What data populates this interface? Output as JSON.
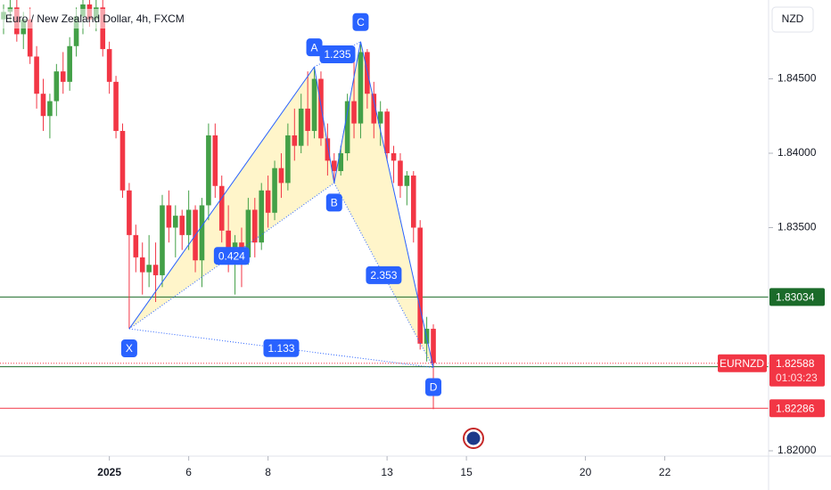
{
  "chart_data": {
    "type": "candlestick",
    "title": "Euro / New Zealand Dollar, 4h, FXCM",
    "currency": "NZD",
    "up_color": "#43a047",
    "down_color": "#f23645",
    "xlim": [
      -0.54,
      115.7
    ],
    "xticks": [
      {
        "value": 16,
        "label": "2025"
      },
      {
        "value": 28,
        "label": "6"
      },
      {
        "value": 40,
        "label": "8"
      },
      {
        "value": 58,
        "label": "13"
      },
      {
        "value": 70,
        "label": "15"
      },
      {
        "value": 88,
        "label": "20"
      },
      {
        "value": 100,
        "label": "22"
      }
    ],
    "ylim": [
      1.81964,
      1.8503
    ],
    "yticks": [
      {
        "value": 1.845,
        "label": "1.84500"
      },
      {
        "value": 1.84,
        "label": "1.84000"
      },
      {
        "value": 1.835,
        "label": "1.83500"
      },
      {
        "value": 1.82,
        "label": "1.82000"
      }
    ],
    "x": [
      0,
      1,
      2,
      3,
      4,
      5,
      6,
      7,
      8,
      9,
      10,
      11,
      12,
      13,
      14,
      15,
      16,
      17,
      18,
      19,
      20,
      21,
      22,
      23,
      24,
      25,
      26,
      27,
      28,
      29,
      30,
      31,
      32,
      33,
      34,
      35,
      36,
      37,
      38,
      39,
      40,
      41,
      42,
      43,
      44,
      45,
      46,
      47,
      48,
      49,
      50,
      51,
      52,
      53,
      54,
      55,
      56,
      57,
      58,
      59,
      60,
      61,
      62,
      63,
      64,
      65
    ],
    "open": [
      1.849,
      1.8495,
      1.8498,
      1.848,
      1.849,
      1.8465,
      1.844,
      1.8425,
      1.8435,
      1.8455,
      1.8448,
      1.8472,
      1.8492,
      1.85,
      1.849,
      1.8498,
      1.847,
      1.8448,
      1.8415,
      1.8375,
      1.8345,
      1.833,
      1.832,
      1.8325,
      1.8318,
      1.8365,
      1.835,
      1.8358,
      1.8345,
      1.8362,
      1.8328,
      1.8365,
      1.8412,
      1.8378,
      1.8348,
      1.8328,
      1.834,
      1.833,
      1.8362,
      1.834,
      1.8375,
      1.836,
      1.839,
      1.838,
      1.8412,
      1.8405,
      1.843,
      1.8415,
      1.845,
      1.841,
      1.8395,
      1.8388,
      1.84,
      1.8435,
      1.842,
      1.8468,
      1.844,
      1.842,
      1.8428,
      1.84,
      1.8395,
      1.8378,
      1.8385,
      1.835,
      1.8272,
      1.8282
    ],
    "high": [
      1.85,
      1.8503,
      1.8503,
      1.8495,
      1.8498,
      1.8472,
      1.845,
      1.844,
      1.846,
      1.8468,
      1.8478,
      1.8498,
      1.8503,
      1.8503,
      1.8503,
      1.8503,
      1.8475,
      1.8452,
      1.842,
      1.838,
      1.8352,
      1.834,
      1.8345,
      1.834,
      1.8372,
      1.8375,
      1.8365,
      1.8362,
      1.8375,
      1.8365,
      1.837,
      1.842,
      1.842,
      1.8385,
      1.8365,
      1.8345,
      1.835,
      1.837,
      1.837,
      1.838,
      1.8385,
      1.8395,
      1.84,
      1.842,
      1.843,
      1.844,
      1.8455,
      1.8458,
      1.8455,
      1.842,
      1.84,
      1.8405,
      1.844,
      1.847,
      1.8475,
      1.847,
      1.8448,
      1.8435,
      1.843,
      1.8405,
      1.84,
      1.8388,
      1.8388,
      1.8355,
      1.829,
      1.8285
    ],
    "low": [
      1.848,
      1.8488,
      1.8475,
      1.847,
      1.846,
      1.843,
      1.8415,
      1.841,
      1.8425,
      1.844,
      1.8442,
      1.8465,
      1.848,
      1.8485,
      1.8482,
      1.8465,
      1.844,
      1.841,
      1.837,
      1.8282,
      1.832,
      1.8305,
      1.831,
      1.83,
      1.831,
      1.834,
      1.833,
      1.8335,
      1.8335,
      1.832,
      1.831,
      1.8355,
      1.837,
      1.834,
      1.832,
      1.8305,
      1.831,
      1.8325,
      1.833,
      1.8335,
      1.835,
      1.8355,
      1.837,
      1.8375,
      1.8395,
      1.84,
      1.8405,
      1.841,
      1.8405,
      1.8385,
      1.838,
      1.8385,
      1.8395,
      1.841,
      1.841,
      1.843,
      1.841,
      1.8405,
      1.8395,
      1.838,
      1.837,
      1.8365,
      1.834,
      1.8268,
      1.826,
      1.8228
    ],
    "close": [
      1.8495,
      1.8498,
      1.848,
      1.849,
      1.8465,
      1.844,
      1.8425,
      1.8435,
      1.8455,
      1.8448,
      1.8472,
      1.8492,
      1.85,
      1.849,
      1.8498,
      1.847,
      1.8448,
      1.8415,
      1.8375,
      1.8345,
      1.833,
      1.832,
      1.8325,
      1.8318,
      1.8365,
      1.835,
      1.8358,
      1.8345,
      1.8362,
      1.8328,
      1.8365,
      1.8412,
      1.8378,
      1.8348,
      1.8328,
      1.834,
      1.833,
      1.8362,
      1.834,
      1.8375,
      1.836,
      1.839,
      1.838,
      1.8412,
      1.8405,
      1.843,
      1.8415,
      1.845,
      1.841,
      1.8395,
      1.8388,
      1.84,
      1.8435,
      1.842,
      1.8468,
      1.844,
      1.842,
      1.8428,
      1.84,
      1.8395,
      1.8378,
      1.8385,
      1.835,
      1.8272,
      1.8282,
      1.8259
    ],
    "price_lines": [
      {
        "value": 1.83034,
        "color": "#1b6b2a"
      },
      {
        "value": 1.82565,
        "color": "#1b6b2a"
      },
      {
        "value": 1.82286,
        "color": "#f23645"
      }
    ],
    "last_price": {
      "symbol": "EURNZD",
      "value": 1.82588,
      "countdown": "01:03:23",
      "color": "#f23645"
    },
    "pattern": {
      "color": "#2962ff",
      "fill": "#fff1b8",
      "points": [
        {
          "label": "X",
          "x": 19,
          "y": 1.8282
        },
        {
          "label": "A",
          "x": 47,
          "y": 1.8458
        },
        {
          "label": "B",
          "x": 50,
          "y": 1.838
        },
        {
          "label": "C",
          "x": 54,
          "y": 1.8475
        },
        {
          "label": "D",
          "x": 65,
          "y": 1.8256
        }
      ],
      "ratios": [
        {
          "value": 0.424,
          "from": "X",
          "to": "B"
        },
        {
          "value": 1.235,
          "from": "A",
          "to": "C"
        },
        {
          "value": 2.353,
          "from": "B",
          "to": "D"
        },
        {
          "value": 1.133,
          "from": "X",
          "to": "D"
        }
      ]
    }
  }
}
